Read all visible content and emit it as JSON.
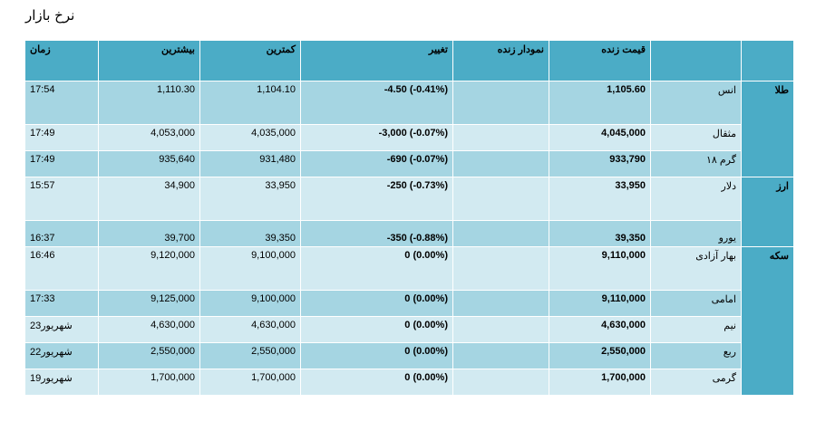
{
  "page": {
    "title": "نرخ بازار"
  },
  "headers": {
    "time": "زمان",
    "high": "بیشترین",
    "low": "کمترین",
    "change": "تغییر",
    "chart": "نمودار زنده",
    "price": "قیمت زنده",
    "name": "",
    "category": ""
  },
  "categories": {
    "gold": "طلا",
    "currency": "ارز",
    "coin": "سکه"
  },
  "rows": [
    {
      "name": "انس",
      "price": "1,105.60",
      "change": "-4.50 (-0.41%)",
      "low": "1,104.10",
      "high": "1,110.30",
      "time": "17:54"
    },
    {
      "name": "مثقال",
      "price": "4,045,000",
      "change": "-3,000 (-0.07%)",
      "low": "4,035,000",
      "high": "4,053,000",
      "time": "17:49"
    },
    {
      "name": "گرم ۱۸",
      "price": "933,790",
      "change": "-690 (-0.07%)",
      "low": "931,480",
      "high": "935,640",
      "time": "17:49"
    },
    {
      "name": "دلار",
      "price": "33,950",
      "change": "-250 (-0.73%)",
      "low": "33,950",
      "high": "34,900",
      "time": "15:57"
    },
    {
      "name": "یورو",
      "price": "39,350",
      "change": "-350 (-0.88%)",
      "low": "39,350",
      "high": "39,700",
      "time": "16:37"
    },
    {
      "name": "بهار آزادی",
      "price": "9,110,000",
      "change": "0 (0.00%)",
      "low": "9,100,000",
      "high": "9,120,000",
      "time": "16:46"
    },
    {
      "name": "امامی",
      "price": "9,110,000",
      "change": "0 (0.00%)",
      "low": "9,100,000",
      "high": "9,125,000",
      "time": "17:33"
    },
    {
      "name": "نیم",
      "price": "4,630,000",
      "change": "0 (0.00%)",
      "low": "4,630,000",
      "high": "4,630,000",
      "time": "23شهریور"
    },
    {
      "name": "ربع",
      "price": "2,550,000",
      "change": "0 (0.00%)",
      "low": "2,550,000",
      "high": "2,550,000",
      "time": "22شهریور"
    },
    {
      "name": "گرمی",
      "price": "1,700,000",
      "change": "0 (0.00%)",
      "low": "1,700,000",
      "high": "1,700,000",
      "time": "19شهریور"
    }
  ]
}
